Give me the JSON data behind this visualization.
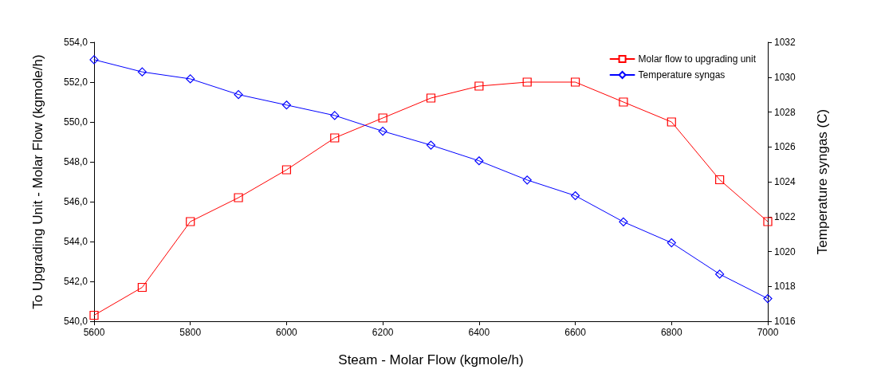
{
  "chart_data": {
    "type": "line",
    "xlabel": "Steam - Molar Flow (kgmole/h)",
    "ylabel": "To Upgrading Unit - Molar Flow (kgmole/h)",
    "y2label": "Temperature syngas (C)",
    "x": [
      5600,
      5700,
      5800,
      5900,
      6000,
      6100,
      6200,
      6300,
      6400,
      6500,
      6600,
      6700,
      6800,
      6900,
      7000
    ],
    "series": [
      {
        "name": "Molar flow to upgrading unit",
        "color": "#ff0000",
        "marker": "square",
        "values": [
          540.3,
          541.7,
          545.0,
          546.2,
          547.6,
          549.2,
          550.2,
          551.2,
          551.8,
          552.0,
          552.0,
          551.0,
          550.0,
          547.1,
          545.0
        ]
      },
      {
        "name": "Temperature syngas",
        "color": "#0000ff",
        "marker": "diamond",
        "axis": "y2",
        "values": [
          1031.0,
          1030.3,
          1029.9,
          1029.0,
          1028.4,
          1027.8,
          1026.9,
          1026.1,
          1025.2,
          1024.1,
          1023.2,
          1021.7,
          1020.5,
          1018.7,
          1017.3
        ]
      }
    ],
    "xlim": [
      5600,
      7000
    ],
    "xticks": [
      5600,
      5800,
      6000,
      6200,
      6400,
      6600,
      6800,
      7000
    ],
    "ylim": [
      540,
      554
    ],
    "yticks": [
      {
        "value": 540,
        "label": "540,0"
      },
      {
        "value": 542,
        "label": "542,0"
      },
      {
        "value": 544,
        "label": "544,0"
      },
      {
        "value": 546,
        "label": "546,0"
      },
      {
        "value": 548,
        "label": "548,0"
      },
      {
        "value": 550,
        "label": "550,0"
      },
      {
        "value": 552,
        "label": "552,0"
      },
      {
        "value": 554,
        "label": "554,0"
      }
    ],
    "y2lim": [
      1016,
      1032
    ],
    "y2ticks": [
      1016,
      1018,
      1020,
      1022,
      1024,
      1026,
      1028,
      1030,
      1032
    ],
    "legend": "top right",
    "grid": false,
    "line_style": "solid"
  }
}
